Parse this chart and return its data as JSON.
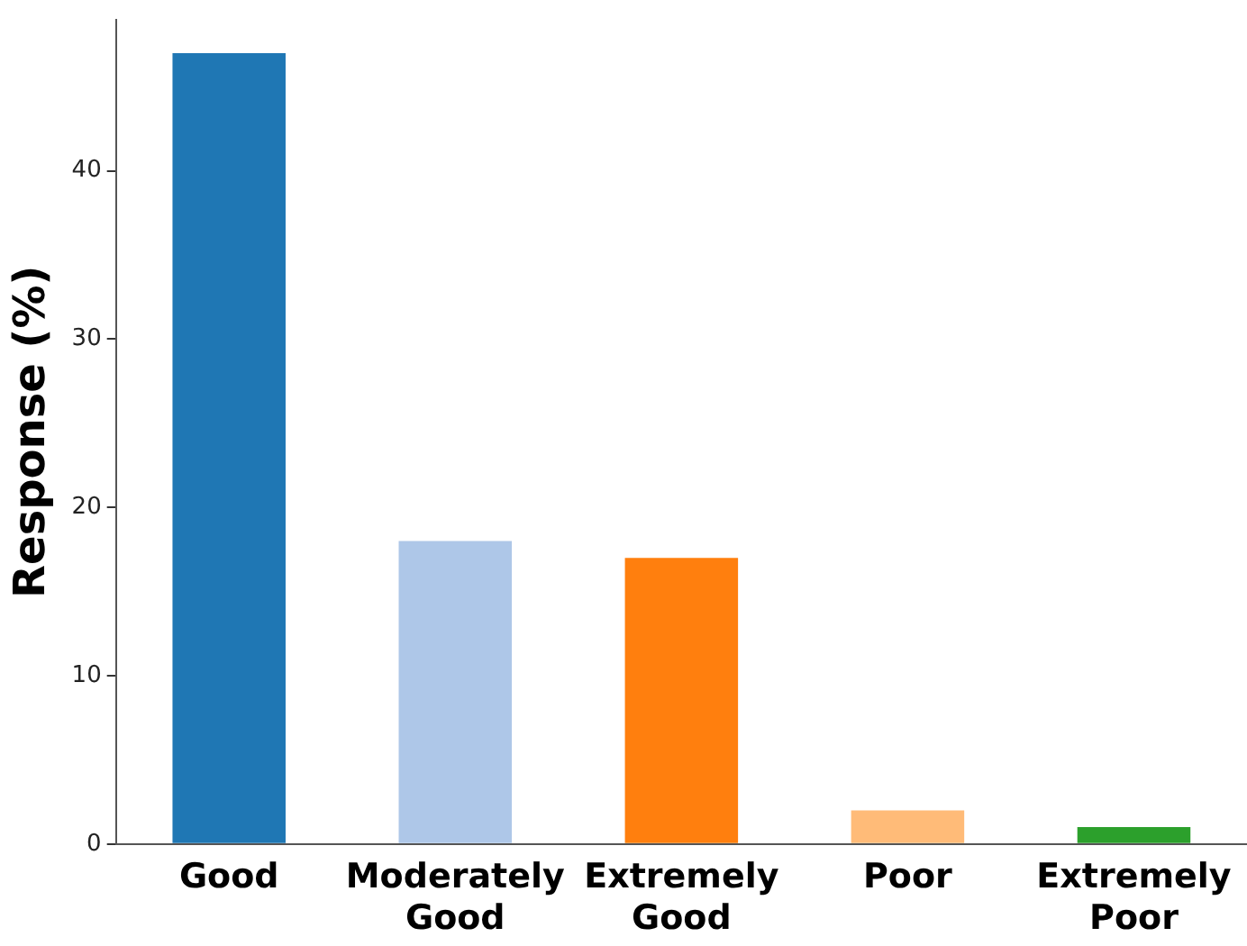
{
  "chart_data": {
    "type": "bar",
    "ylabel": "Response (%)",
    "categories": [
      "Good",
      "Moderately Good",
      "Extremely Good",
      "Poor",
      "Extremely Poor"
    ],
    "values": [
      47,
      18,
      17,
      2,
      1
    ],
    "colors": [
      "#1f77b4",
      "#aec7e8",
      "#ff7f0e",
      "#ffbb78",
      "#2ca02c"
    ],
    "ylim": [
      0,
      49
    ],
    "yticks": [
      0,
      10,
      20,
      30,
      40
    ],
    "grid": false,
    "legend": false
  }
}
